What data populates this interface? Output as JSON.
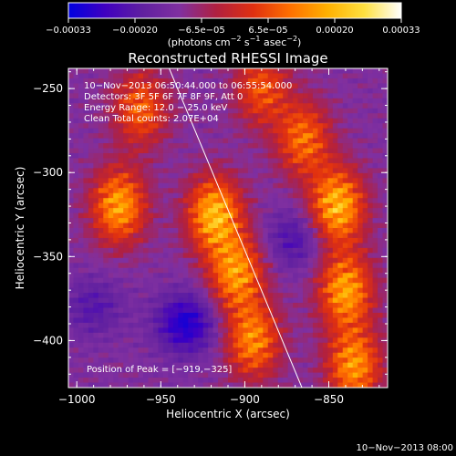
{
  "chart_data": {
    "type": "heatmap",
    "title": "Reconstructed RHESSI Image",
    "xlabel": "Heliocentric X (arcsec)",
    "ylabel": "Heliocentric Y (arcsec)",
    "xlim": [
      -1005,
      -815
    ],
    "ylim": [
      -428,
      -238
    ],
    "x_ticks": [
      -1000,
      -950,
      -900,
      -850
    ],
    "y_ticks": [
      -250,
      -300,
      -350,
      -400
    ],
    "x_tick_labels": [
      "−1000",
      "−950",
      "−900",
      "−850"
    ],
    "y_tick_labels": [
      "−250",
      "−300",
      "−350",
      "−400"
    ],
    "colorbar": {
      "min": -0.00033,
      "max": 0.00033,
      "tick_labels": [
        "−0.00033",
        "−0.00020",
        "−6.5e−05",
        "6.5e−05",
        "0.00020",
        "0.00033"
      ],
      "unit_label_parts": [
        "(photons cm",
        "−2",
        " s",
        "−1",
        " asec",
        "−2",
        ")"
      ],
      "colors": [
        "#0000e0",
        "#4000c0",
        "#6020a0",
        "#8030a0",
        "#b02040",
        "#e03010",
        "#ff7000",
        "#ffb000",
        "#ffe040",
        "#ffffff"
      ]
    },
    "info": [
      "10−Nov−2013 06:50:44.000 to 06:55:54.000",
      "Detectors: 3F 5F 6F 7F 8F 9F, Att 0",
      "Energy Range: 12.0 − 25.0 keV",
      "Clean     Total counts: 2.07E+04"
    ],
    "peak_label": "Position of Peak = [−919,−325]",
    "peak": [
      -919,
      -325
    ],
    "limb_line": [
      [
        -945,
        -238
      ],
      [
        -866,
        -428
      ]
    ],
    "sources": [
      {
        "x": -975,
        "y": -320,
        "strength": 0.9
      },
      {
        "x": -962,
        "y": -262,
        "strength": 0.65
      },
      {
        "x": -918,
        "y": -325,
        "strength": 1.0
      },
      {
        "x": -905,
        "y": -360,
        "strength": 0.85
      },
      {
        "x": -895,
        "y": -400,
        "strength": 0.8
      },
      {
        "x": -865,
        "y": -280,
        "strength": 0.7
      },
      {
        "x": -845,
        "y": -320,
        "strength": 1.0
      },
      {
        "x": -840,
        "y": -370,
        "strength": 0.9
      },
      {
        "x": -835,
        "y": -415,
        "strength": 0.85
      },
      {
        "x": -890,
        "y": -250,
        "strength": 0.6
      }
    ],
    "minima": [
      {
        "x": -935,
        "y": -390,
        "strength": 1.0
      },
      {
        "x": -870,
        "y": -340,
        "strength": 0.6
      },
      {
        "x": -990,
        "y": -380,
        "strength": 0.5
      }
    ]
  },
  "footer": {
    "timestamp": "10−Nov−2013 08:00"
  }
}
